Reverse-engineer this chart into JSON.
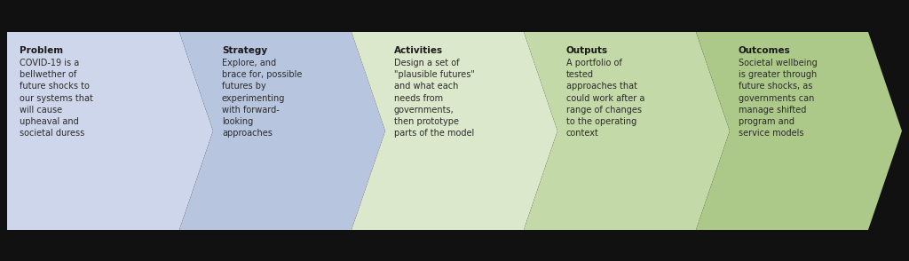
{
  "arrows": [
    {
      "label": "Problem",
      "text": "COVID-19 is a\nbellwether of\nfuture shocks to\nour systems that\nwill cause\nupheaval and\nsocietal duress",
      "color": "#cdd6ea"
    },
    {
      "label": "Strategy",
      "text": "Explore, and\nbrace for, possible\nfutures by\nexperimenting\nwith forward-\nlooking\napproaches",
      "color": "#b8c5df"
    },
    {
      "label": "Activities",
      "text": "Design a set of\n\"plausible futures\"\nand what each\nneeds from\ngovernments,\nthen prototype\nparts of the model",
      "color": "#dce8cc"
    },
    {
      "label": "Outputs",
      "text": "A portfolio of\ntested\napproaches that\ncould work after a\nrange of changes\nto the operating\ncontext",
      "color": "#c4d9a8"
    },
    {
      "label": "Outcomes",
      "text": "Societal wellbeing\nis greater through\nfuture shocks, as\ngovernments can\nmanage shifted\nprogram and\nservice models",
      "color": "#adc98a"
    }
  ],
  "background_color": "#111111",
  "text_color": "#2a2a2a",
  "label_color": "#1a1a1a",
  "fig_width": 10.24,
  "fig_height": 2.94,
  "dpi": 100
}
